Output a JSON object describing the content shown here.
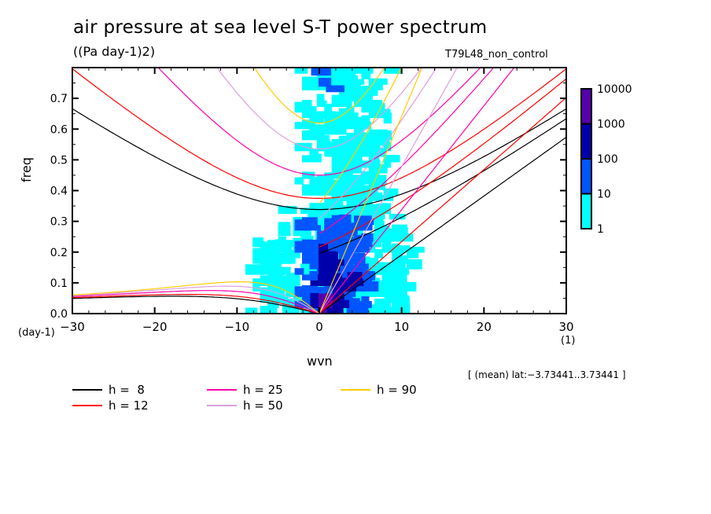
{
  "chart_data": {
    "type": "heatmap",
    "title": "air pressure at sea level S-T power spectrum",
    "subtitle": "((Pa day-1)2)",
    "run_label": "T79L48_non_control",
    "xlabel": "wvn",
    "ylabel": "freq",
    "x_unit": "(1)",
    "y_unit": "(day-1)",
    "xlim": [
      -30,
      30
    ],
    "ylim": [
      0.0,
      0.8
    ],
    "x_ticks": [
      -30,
      -20,
      -10,
      0,
      10,
      20,
      30
    ],
    "x_tick_labels": [
      "−30",
      "−20",
      "−10",
      "0",
      "10",
      "20",
      "30"
    ],
    "y_ticks": [
      0.0,
      0.1,
      0.2,
      0.3,
      0.4,
      0.5,
      0.6,
      0.7
    ],
    "y_tick_labels": [
      "0.0",
      "0.1",
      "0.2",
      "0.3",
      "0.4",
      "0.5",
      "0.6",
      "0.7"
    ],
    "region_note": "[ (mean) lat:−3.73441..3.73441 ]",
    "colorbar": {
      "levels": [
        1,
        10,
        100,
        1000,
        10000
      ],
      "level_labels": [
        "1",
        "10",
        "100",
        "1000",
        "10000"
      ],
      "colors": [
        "#00FFFF",
        "#0055FF",
        "#0000AA",
        "#5500AA"
      ],
      "scale": "log"
    },
    "power_field_description": "Power concentrated near wvn 0..8, strongest (>1000) at low freq near wvn 0-3; cyan (1-10) band extends up to freq ~0.8 between wvn -4 and 8.",
    "power_blobs": [
      {
        "level": 1,
        "x0": -5,
        "x1": 9,
        "y0": 0.0,
        "y1": 0.33
      },
      {
        "level": 1,
        "x0": -3,
        "x1": 8,
        "y0": 0.33,
        "y1": 0.8
      },
      {
        "level": 1,
        "x0": -9,
        "x1": -4,
        "y0": 0.0,
        "y1": 0.22
      },
      {
        "level": 1,
        "x0": 7,
        "x1": 11,
        "y0": 0.0,
        "y1": 0.28
      },
      {
        "level": 2,
        "x0": -3,
        "x1": 6,
        "y0": 0.0,
        "y1": 0.3
      },
      {
        "level": 2,
        "x0": -1,
        "x1": 1,
        "y0": 0.72,
        "y1": 0.78
      },
      {
        "level": 3,
        "x0": -2,
        "x1": 4,
        "y0": 0.0,
        "y1": 0.12
      },
      {
        "level": 3,
        "x0": -1,
        "x1": 2,
        "y0": 0.12,
        "y1": 0.2
      },
      {
        "level": 4,
        "x0": -1,
        "x1": 1,
        "y0": 0.0,
        "y1": 0.04
      }
    ],
    "dispersion_curves": {
      "equivalent_depths": [
        8,
        12,
        25,
        50,
        90
      ],
      "families": [
        "kelvin",
        "inertia_gravity_n1",
        "inertia_gravity_n0_eastward",
        "mrg_rossby_low_freq"
      ]
    },
    "legend": [
      {
        "label": "h =  8",
        "color": "#000000"
      },
      {
        "label": "h = 12",
        "color": "#FF0000"
      },
      {
        "label": "h = 25",
        "color": "#FF00AA"
      },
      {
        "label": "h = 50",
        "color": "#DDA0DD"
      },
      {
        "label": "h = 90",
        "color": "#FFCC00"
      }
    ],
    "legend_placement": "bottom-left",
    "grid": false
  }
}
